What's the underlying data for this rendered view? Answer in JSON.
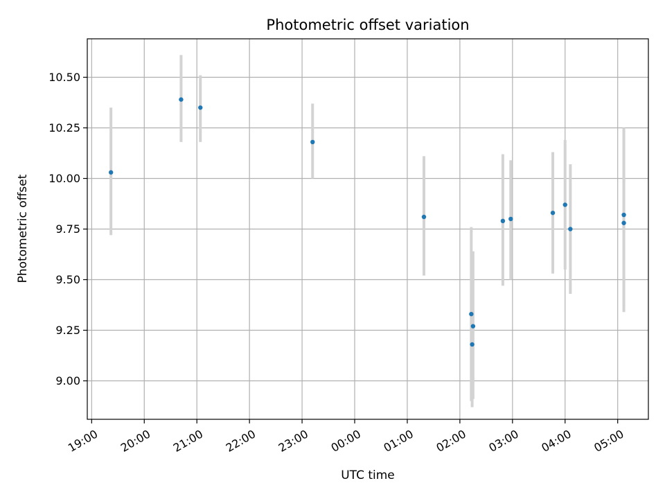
{
  "chart_data": {
    "type": "scatter",
    "title": "Photometric offset variation",
    "xlabel": "UTC time",
    "ylabel": "Photometric offset",
    "x_unit": "UTC time (HH:MM)",
    "xlim": [
      "18:55",
      "05:35"
    ],
    "ylim": [
      8.81,
      10.69
    ],
    "grid": true,
    "legend": "none",
    "point_color": "#1f77b4",
    "errorbar_color": "#d3d3d3",
    "x_ticks": [
      "19:00",
      "20:00",
      "21:00",
      "22:00",
      "23:00",
      "00:00",
      "01:00",
      "02:00",
      "03:00",
      "04:00",
      "05:00"
    ],
    "y_ticks": [
      9.0,
      9.25,
      9.5,
      9.75,
      10.0,
      10.25,
      10.5
    ],
    "y_tick_labels": [
      "9.00",
      "9.25",
      "9.50",
      "9.75",
      "10.00",
      "10.25",
      "10.50"
    ],
    "points": [
      {
        "x": "19:22",
        "y": 10.03,
        "ylo": 9.72,
        "yhi": 10.35
      },
      {
        "x": "20:42",
        "y": 10.39,
        "ylo": 10.18,
        "yhi": 10.61
      },
      {
        "x": "21:04",
        "y": 10.35,
        "ylo": 10.18,
        "yhi": 10.51
      },
      {
        "x": "23:12",
        "y": 10.18,
        "ylo": 10.0,
        "yhi": 10.37
      },
      {
        "x": "01:19",
        "y": 9.81,
        "ylo": 9.52,
        "yhi": 10.11
      },
      {
        "x": "02:13",
        "y": 9.33,
        "ylo": 8.9,
        "yhi": 9.76
      },
      {
        "x": "02:14",
        "y": 9.18,
        "ylo": 8.87,
        "yhi": 9.45
      },
      {
        "x": "02:15",
        "y": 9.27,
        "ylo": 8.91,
        "yhi": 9.64
      },
      {
        "x": "02:49",
        "y": 9.79,
        "ylo": 9.47,
        "yhi": 10.12
      },
      {
        "x": "02:58",
        "y": 9.8,
        "ylo": 9.5,
        "yhi": 10.09
      },
      {
        "x": "03:46",
        "y": 9.83,
        "ylo": 9.53,
        "yhi": 10.13
      },
      {
        "x": "04:00",
        "y": 9.87,
        "ylo": 9.55,
        "yhi": 10.19
      },
      {
        "x": "04:06",
        "y": 9.75,
        "ylo": 9.43,
        "yhi": 10.07
      },
      {
        "x": "05:07",
        "y": 9.82,
        "ylo": 9.37,
        "yhi": 10.25
      },
      {
        "x": "05:07",
        "y": 9.78,
        "ylo": 9.34,
        "yhi": 10.24
      }
    ]
  }
}
